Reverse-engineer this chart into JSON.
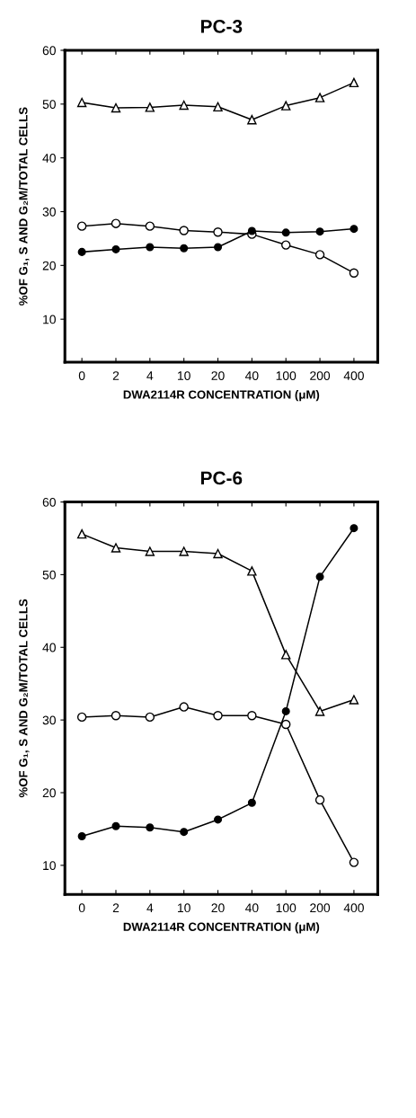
{
  "chart_data": [
    {
      "type": "line",
      "title": "PC-3",
      "xlabel": "DWA2114R CONCENTRATION (μM)",
      "ylabel": "%OF G₁, S AND G₂M/TOTAL CELLS",
      "categories": [
        "0",
        "2",
        "4",
        "10",
        "20",
        "40",
        "100",
        "200",
        "400"
      ],
      "ylim": [
        2,
        60
      ],
      "yticks": [
        10,
        20,
        30,
        40,
        50,
        60
      ],
      "grid": false,
      "legend": false,
      "series": [
        {
          "color": "#000000",
          "marker": "triangle",
          "values": [
            50.3,
            49.3,
            49.4,
            49.8,
            49.5,
            47.1,
            49.7,
            51.2,
            54.0
          ]
        },
        {
          "color": "#000000",
          "marker": "circle",
          "values": [
            27.3,
            27.8,
            27.3,
            26.5,
            26.2,
            25.8,
            23.8,
            22.0,
            18.6
          ]
        },
        {
          "color": "#000000",
          "marker": "circle",
          "values": [
            22.5,
            23.0,
            23.4,
            23.2,
            23.4,
            26.4,
            26.1,
            26.3,
            26.8
          ]
        }
      ]
    },
    {
      "type": "line",
      "title": "PC-6",
      "xlabel": "DWA2114R CONCENTRATION (μM)",
      "ylabel": "%OF G₁, S AND G₂M/TOTAL CELLS",
      "categories": [
        "0",
        "2",
        "4",
        "10",
        "20",
        "40",
        "100",
        "200",
        "400"
      ],
      "ylim": [
        6,
        60
      ],
      "yticks": [
        10,
        20,
        30,
        40,
        50,
        60
      ],
      "grid": false,
      "legend": false,
      "series": [
        {
          "color": "#000000",
          "marker": "triangle",
          "values": [
            55.6,
            53.7,
            53.2,
            53.2,
            52.9,
            50.5,
            39.0,
            31.2,
            32.8
          ]
        },
        {
          "color": "#000000",
          "marker": "circle",
          "values": [
            30.4,
            30.6,
            30.4,
            31.8,
            30.6,
            30.6,
            29.4,
            19.0,
            10.4
          ]
        },
        {
          "color": "#000000",
          "marker": "circle",
          "values": [
            14.0,
            15.4,
            15.2,
            14.6,
            16.3,
            18.6,
            31.2,
            49.7,
            56.4
          ]
        }
      ]
    }
  ]
}
